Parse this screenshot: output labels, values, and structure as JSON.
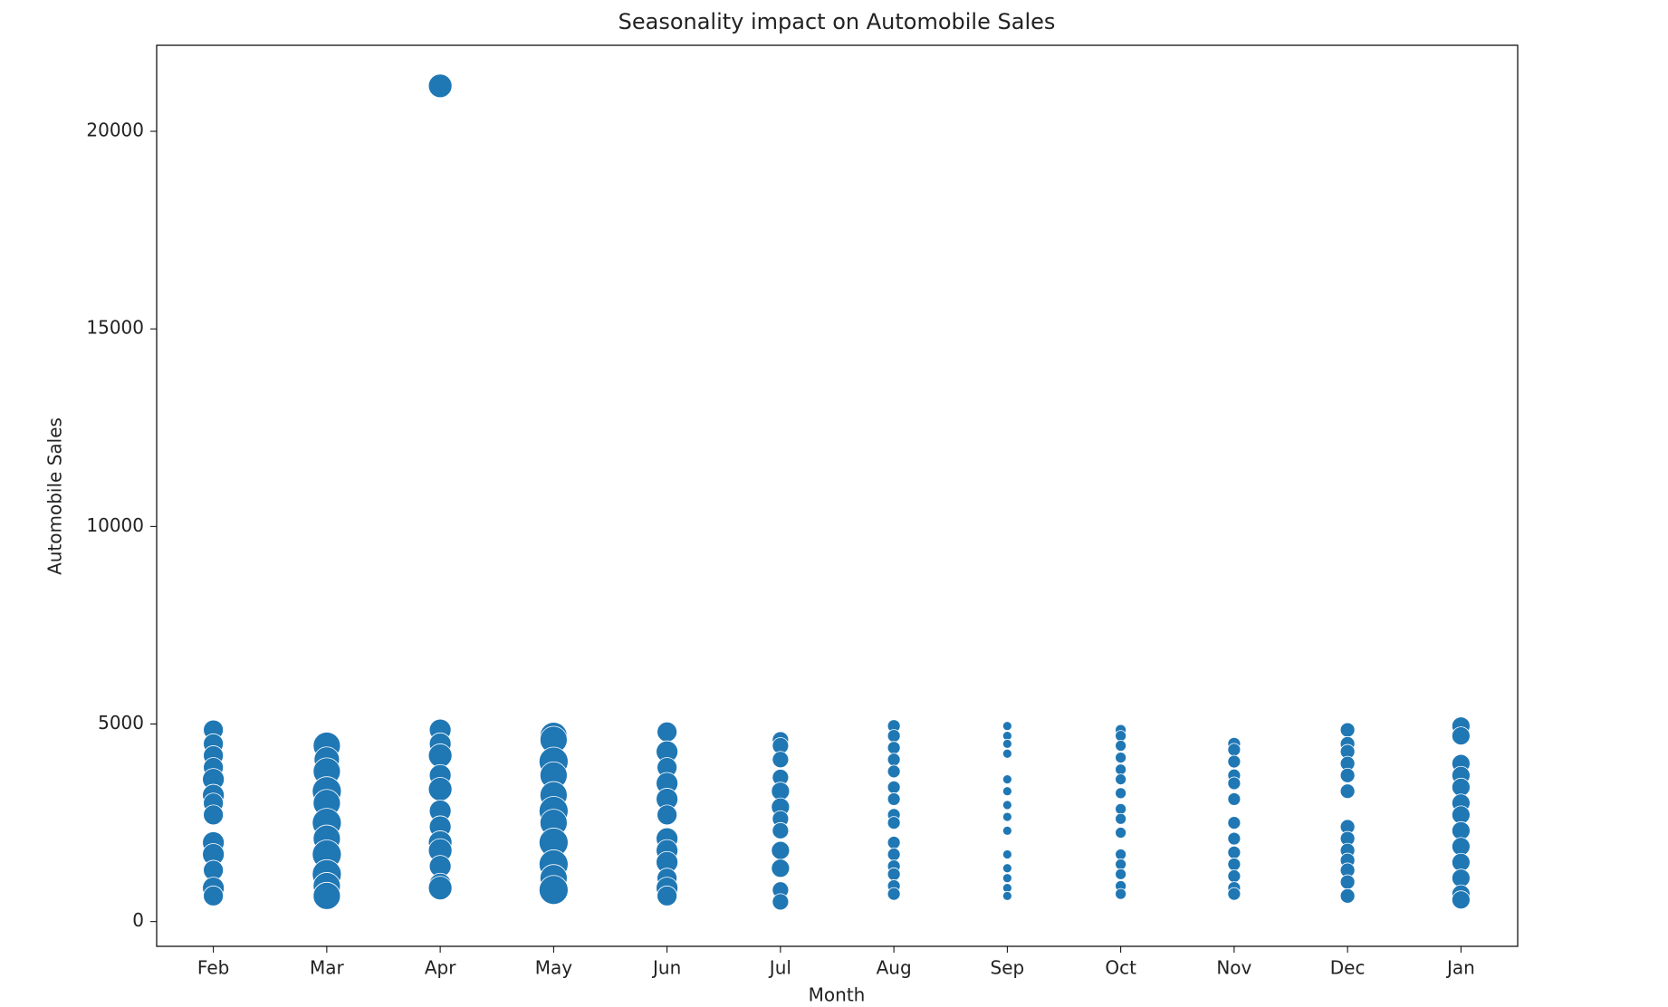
{
  "chart_data": {
    "type": "scatter",
    "title": "Seasonality impact on Automobile Sales",
    "xlabel": "Month",
    "ylabel": "Automobile Sales",
    "categories": [
      "Feb",
      "Mar",
      "Apr",
      "May",
      "Jun",
      "Jul",
      "Aug",
      "Sep",
      "Oct",
      "Nov",
      "Dec",
      "Jan"
    ],
    "color": "#1f77b4",
    "ylim": [
      -626,
      22177
    ],
    "yticks": [
      0,
      5000,
      10000,
      15000,
      20000
    ],
    "x": [
      "Feb",
      "Feb",
      "Feb",
      "Feb",
      "Feb",
      "Feb",
      "Feb",
      "Feb",
      "Feb",
      "Feb",
      "Feb",
      "Feb",
      "Feb",
      "Mar",
      "Mar",
      "Mar",
      "Mar",
      "Mar",
      "Mar",
      "Mar",
      "Mar",
      "Mar",
      "Mar",
      "Mar",
      "Apr",
      "Apr",
      "Apr",
      "Apr",
      "Apr",
      "Apr",
      "Apr",
      "Apr",
      "Apr",
      "Apr",
      "Apr",
      "Apr",
      "Apr",
      "May",
      "May",
      "May",
      "May",
      "May",
      "May",
      "May",
      "May",
      "May",
      "May",
      "May",
      "Jun",
      "Jun",
      "Jun",
      "Jun",
      "Jun",
      "Jun",
      "Jun",
      "Jun",
      "Jun",
      "Jun",
      "Jun",
      "Jun",
      "Jul",
      "Jul",
      "Jul",
      "Jul",
      "Jul",
      "Jul",
      "Jul",
      "Jul",
      "Jul",
      "Jul",
      "Jul",
      "Jul",
      "Aug",
      "Aug",
      "Aug",
      "Aug",
      "Aug",
      "Aug",
      "Aug",
      "Aug",
      "Aug",
      "Aug",
      "Aug",
      "Aug",
      "Aug",
      "Aug",
      "Aug",
      "Sep",
      "Sep",
      "Sep",
      "Sep",
      "Sep",
      "Sep",
      "Sep",
      "Sep",
      "Sep",
      "Sep",
      "Sep",
      "Sep",
      "Sep",
      "Sep",
      "Oct",
      "Oct",
      "Oct",
      "Oct",
      "Oct",
      "Oct",
      "Oct",
      "Oct",
      "Oct",
      "Oct",
      "Oct",
      "Oct",
      "Oct",
      "Oct",
      "Oct",
      "Nov",
      "Nov",
      "Nov",
      "Nov",
      "Nov",
      "Nov",
      "Nov",
      "Nov",
      "Nov",
      "Nov",
      "Nov",
      "Nov",
      "Nov",
      "Dec",
      "Dec",
      "Dec",
      "Dec",
      "Dec",
      "Dec",
      "Dec",
      "Dec",
      "Dec",
      "Dec",
      "Dec",
      "Dec",
      "Dec",
      "Jan",
      "Jan",
      "Jan",
      "Jan",
      "Jan",
      "Jan",
      "Jan",
      "Jan",
      "Jan",
      "Jan",
      "Jan",
      "Jan",
      "Jan"
    ],
    "values": [
      4850,
      4500,
      4200,
      3900,
      3600,
      3200,
      3000,
      2700,
      2000,
      1700,
      1300,
      850,
      650,
      4450,
      4100,
      3800,
      3300,
      3000,
      2500,
      2100,
      1700,
      1200,
      900,
      650,
      21150,
      4850,
      4500,
      4200,
      3700,
      3350,
      2800,
      2400,
      2000,
      1800,
      1400,
      950,
      850,
      4700,
      4600,
      4050,
      3700,
      3200,
      2800,
      2500,
      2000,
      1450,
      1100,
      800,
      4800,
      4300,
      3900,
      3500,
      3100,
      2700,
      2100,
      1800,
      1500,
      1100,
      850,
      650,
      4600,
      4450,
      4100,
      3650,
      3300,
      2900,
      2600,
      2300,
      1800,
      1350,
      800,
      500,
      4950,
      4700,
      4400,
      4100,
      3800,
      3400,
      3100,
      2700,
      2500,
      2000,
      1700,
      1400,
      1200,
      900,
      700,
      4950,
      4700,
      4500,
      4250,
      3600,
      3300,
      2950,
      2650,
      2300,
      1700,
      1350,
      1100,
      850,
      650,
      4850,
      4700,
      4450,
      4150,
      3850,
      3600,
      3250,
      2850,
      2600,
      2250,
      1700,
      1450,
      1200,
      900,
      700,
      4500,
      4350,
      4050,
      3700,
      3500,
      3100,
      2500,
      2100,
      1750,
      1450,
      1150,
      850,
      700,
      4850,
      4500,
      4300,
      4000,
      3700,
      3300,
      2400,
      2100,
      1800,
      1550,
      1300,
      1000,
      650,
      4950,
      4700,
      4000,
      3700,
      3400,
      3000,
      2700,
      2300,
      1900,
      1500,
      1100,
      700,
      550
    ],
    "sizes": [
      11,
      11,
      11,
      11,
      12,
      12,
      11,
      11,
      12,
      12,
      11,
      12,
      11,
      15,
      14,
      15,
      16,
      15,
      16,
      15,
      16,
      16,
      15,
      15,
      13,
      12,
      12,
      13,
      12,
      13,
      12,
      12,
      13,
      13,
      12,
      12,
      13,
      15,
      15,
      16,
      15,
      15,
      16,
      15,
      16,
      16,
      15,
      16,
      11,
      12,
      11,
      12,
      12,
      11,
      12,
      12,
      12,
      11,
      12,
      11,
      9,
      9,
      9,
      9,
      10,
      10,
      9,
      9,
      10,
      10,
      9,
      9,
      7,
      7,
      7,
      7,
      7,
      7,
      7,
      7,
      7,
      7,
      7,
      7,
      7,
      7,
      7,
      5,
      5,
      5,
      5,
      5,
      5,
      5,
      5,
      5,
      5,
      5,
      5,
      5,
      5,
      6,
      6,
      6,
      6,
      6,
      6,
      6,
      6,
      6,
      6,
      6,
      6,
      6,
      6,
      6,
      7,
      7,
      7,
      7,
      7,
      7,
      7,
      7,
      7,
      7,
      7,
      7,
      7,
      8,
      8,
      8,
      8,
      8,
      8,
      8,
      8,
      8,
      8,
      8,
      8,
      8,
      10,
      10,
      10,
      10,
      10,
      10,
      10,
      10,
      10,
      10,
      10,
      10,
      10
    ]
  }
}
